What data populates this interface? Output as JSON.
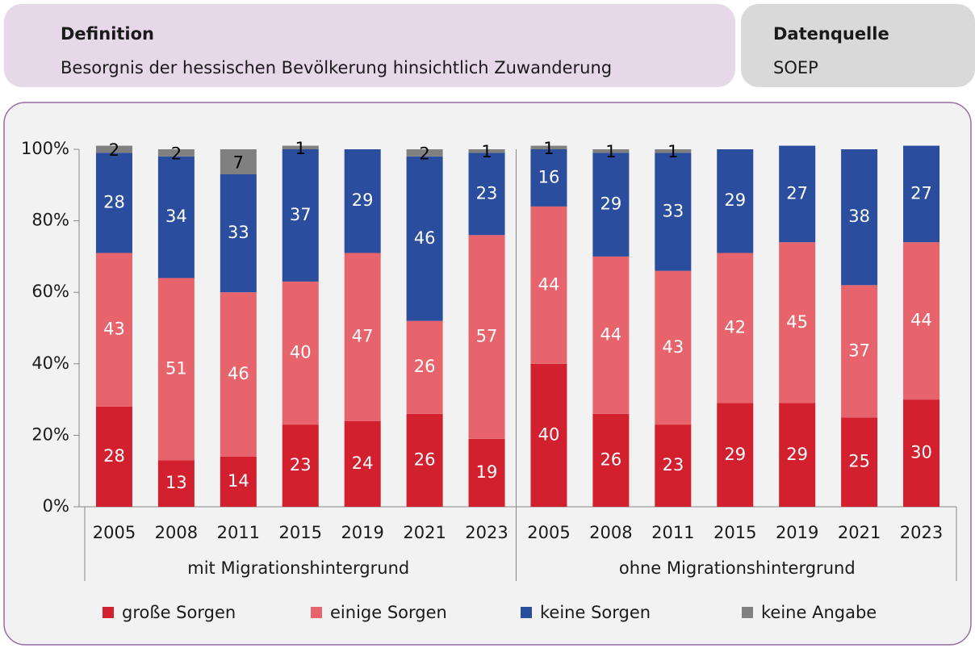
{
  "header": {
    "definition": {
      "title": "Definition",
      "text": "Besorgnis der hessischen Bevölkerung hinsichtlich Zuwanderung"
    },
    "source": {
      "title": "Datenquelle",
      "text": "SOEP"
    }
  },
  "chart_data": {
    "type": "stacked-bar",
    "groups": [
      {
        "name": "mit Migrationshintergrund",
        "categories": [
          "2005",
          "2008",
          "2011",
          "2015",
          "2019",
          "2021",
          "2023"
        ]
      },
      {
        "name": "ohne Migrationshintergrund",
        "categories": [
          "2005",
          "2008",
          "2011",
          "2015",
          "2019",
          "2021",
          "2023"
        ]
      }
    ],
    "series": [
      {
        "name": "große Sorgen",
        "color": "#d3202f",
        "values": [
          28,
          13,
          14,
          23,
          24,
          26,
          19,
          40,
          26,
          23,
          29,
          29,
          25,
          30
        ]
      },
      {
        "name": "einige Sorgen",
        "color": "#e8646d",
        "values": [
          43,
          51,
          46,
          40,
          47,
          26,
          57,
          44,
          44,
          43,
          42,
          45,
          37,
          44
        ]
      },
      {
        "name": "keine Sorgen",
        "color": "#2a4d9e",
        "values": [
          28,
          34,
          33,
          37,
          29,
          46,
          23,
          16,
          29,
          33,
          29,
          27,
          38,
          27
        ]
      },
      {
        "name": "keine Angabe",
        "color": "#808080",
        "values": [
          2,
          2,
          7,
          1,
          null,
          2,
          1,
          1,
          1,
          1,
          null,
          null,
          null,
          null
        ]
      }
    ],
    "ylim": [
      0,
      100
    ],
    "yticks": [
      {
        "value": 0,
        "label": "0%"
      },
      {
        "value": 20,
        "label": "20%"
      },
      {
        "value": 40,
        "label": "40%"
      },
      {
        "value": 60,
        "label": "60%"
      },
      {
        "value": 80,
        "label": "80%"
      },
      {
        "value": 100,
        "label": "100%"
      }
    ],
    "legend": "bottom"
  }
}
